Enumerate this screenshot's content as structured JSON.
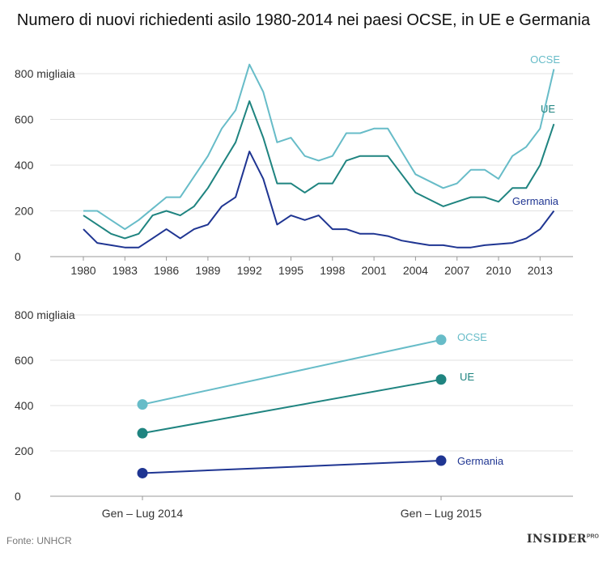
{
  "title": "Numero di nuovi richiedenti asilo 1980-2014 nei paesi OCSE, in UE e Germania",
  "source": "Fonte: UNHCR",
  "brand": {
    "name": "INSIDER",
    "suffix": "PRO"
  },
  "colors": {
    "OCSE": "#67bcc8",
    "UE": "#1f8480",
    "Germania": "#1f3592",
    "axis": "#999999",
    "text": "#333333"
  },
  "chart_data": [
    {
      "type": "line",
      "title": "Numero di nuovi richiedenti asilo 1980-2014 nei paesi OCSE, in UE e Germania",
      "xlabel": "",
      "ylabel": "",
      "ylim": [
        0,
        850
      ],
      "xlim": [
        1978.5,
        2015.5
      ],
      "yticks": [
        {
          "value": 0,
          "label": "0"
        },
        {
          "value": 200,
          "label": "200"
        },
        {
          "value": 400,
          "label": "400"
        },
        {
          "value": 600,
          "label": "600"
        },
        {
          "value": 800,
          "label": "800 migliaia"
        }
      ],
      "xticks": [
        {
          "value": 1980,
          "label": "1980"
        },
        {
          "value": 1983,
          "label": "1983"
        },
        {
          "value": 1986,
          "label": "1986"
        },
        {
          "value": 1989,
          "label": "1989"
        },
        {
          "value": 1992,
          "label": "1992"
        },
        {
          "value": 1995,
          "label": "1995"
        },
        {
          "value": 1998,
          "label": "1998"
        },
        {
          "value": 2001,
          "label": "2001"
        },
        {
          "value": 2004,
          "label": "2004"
        },
        {
          "value": 2007,
          "label": "2007"
        },
        {
          "value": 2010,
          "label": "2010"
        },
        {
          "value": 2013,
          "label": "2013"
        }
      ],
      "x": [
        1980,
        1981,
        1982,
        1983,
        1984,
        1985,
        1986,
        1987,
        1988,
        1989,
        1990,
        1991,
        1992,
        1993,
        1994,
        1995,
        1996,
        1997,
        1998,
        1999,
        2000,
        2001,
        2002,
        2003,
        2004,
        2005,
        2006,
        2007,
        2008,
        2009,
        2010,
        2011,
        2012,
        2013,
        2014
      ],
      "series": [
        {
          "name": "OCSE",
          "values": [
            200,
            200,
            160,
            120,
            160,
            210,
            260,
            260,
            350,
            440,
            560,
            640,
            840,
            720,
            500,
            520,
            440,
            420,
            440,
            540,
            540,
            560,
            560,
            460,
            360,
            330,
            300,
            320,
            380,
            380,
            340,
            440,
            480,
            560,
            820
          ]
        },
        {
          "name": "UE",
          "values": [
            180,
            140,
            100,
            80,
            100,
            180,
            200,
            180,
            220,
            300,
            400,
            500,
            680,
            520,
            320,
            320,
            280,
            320,
            320,
            420,
            440,
            440,
            440,
            360,
            280,
            250,
            220,
            240,
            260,
            260,
            240,
            300,
            300,
            400,
            580
          ]
        },
        {
          "name": "Germania",
          "values": [
            120,
            60,
            50,
            40,
            40,
            80,
            120,
            80,
            120,
            140,
            220,
            260,
            460,
            340,
            140,
            180,
            160,
            180,
            120,
            120,
            100,
            100,
            90,
            70,
            60,
            50,
            50,
            40,
            40,
            50,
            55,
            60,
            80,
            120,
            200
          ]
        }
      ],
      "legend": "end-of-line labels"
    },
    {
      "type": "line",
      "xlabel": "",
      "ylabel": "",
      "ylim": [
        0,
        800
      ],
      "categories": [
        "Gen – Lug 2014",
        "Gen – Lug 2015"
      ],
      "yticks": [
        {
          "value": 0,
          "label": "0"
        },
        {
          "value": 200,
          "label": "200"
        },
        {
          "value": 400,
          "label": "400"
        },
        {
          "value": 600,
          "label": "600"
        },
        {
          "value": 800,
          "label": "800 migliaia"
        }
      ],
      "series": [
        {
          "name": "OCSE",
          "values": [
            405,
            690
          ]
        },
        {
          "name": "UE",
          "values": [
            278,
            515
          ]
        },
        {
          "name": "Germania",
          "values": [
            102,
            157
          ]
        }
      ],
      "legend": "end-of-line labels"
    }
  ]
}
